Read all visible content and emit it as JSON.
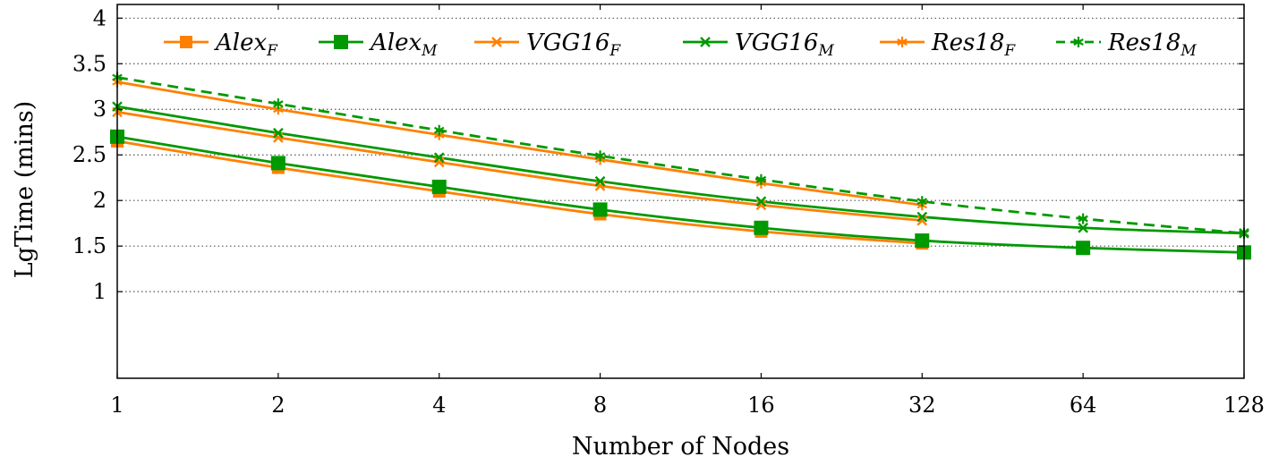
{
  "chart_data": {
    "type": "line",
    "title": "",
    "xlabel": "Number of Nodes",
    "ylabel": "LgTime (mins)",
    "x": [
      1,
      2,
      4,
      8,
      16,
      32,
      64,
      128
    ],
    "x_tick_labels": [
      "1",
      "2",
      "4",
      "8",
      "16",
      "32",
      "64",
      "128"
    ],
    "y_ticks": [
      1,
      1.5,
      2,
      2.5,
      3,
      3.5,
      4
    ],
    "y_tick_labels": [
      "1",
      "1.5",
      "2",
      "2.5",
      "3",
      "3.5",
      "4"
    ],
    "ylim": [
      0.05,
      4.15
    ],
    "grid": "horizontal dotted",
    "legend_position": "top",
    "series": [
      {
        "key": "alex-f",
        "base": "Alex",
        "sub": "F",
        "color": "#ff8000",
        "marker": "square-small",
        "dashed": false,
        "values": [
          2.65,
          2.36,
          2.1,
          1.85,
          1.66,
          1.53,
          null,
          null
        ]
      },
      {
        "key": "alex-m",
        "base": "Alex",
        "sub": "M",
        "color": "#009900",
        "marker": "square",
        "dashed": false,
        "values": [
          2.7,
          2.41,
          2.15,
          1.9,
          1.7,
          1.56,
          1.48,
          1.43
        ]
      },
      {
        "key": "vgg16-f",
        "base": "VGG16",
        "sub": "F",
        "color": "#ff8000",
        "marker": "x",
        "dashed": false,
        "values": [
          2.97,
          2.69,
          2.42,
          2.16,
          1.95,
          1.78,
          null,
          null
        ]
      },
      {
        "key": "vgg16-m",
        "base": "VGG16",
        "sub": "M",
        "color": "#009900",
        "marker": "x",
        "dashed": false,
        "values": [
          3.03,
          2.74,
          2.47,
          2.21,
          1.99,
          1.82,
          1.7,
          1.64
        ]
      },
      {
        "key": "res18-f",
        "base": "Res18",
        "sub": "F",
        "color": "#ff8000",
        "marker": "star",
        "dashed": false,
        "values": [
          3.3,
          3.0,
          2.72,
          2.45,
          2.19,
          1.95,
          null,
          null
        ]
      },
      {
        "key": "res18-m",
        "base": "Res18",
        "sub": "M",
        "color": "#009900",
        "marker": "star",
        "dashed": true,
        "values": [
          3.35,
          3.06,
          2.77,
          2.49,
          2.23,
          1.99,
          1.8,
          1.64
        ]
      }
    ]
  }
}
